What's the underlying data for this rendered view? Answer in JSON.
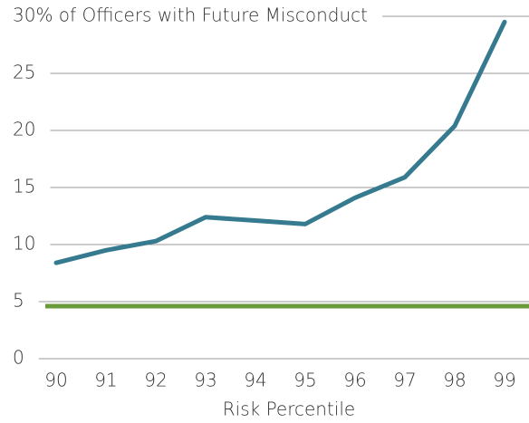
{
  "chart_data": {
    "type": "line",
    "categories": [
      "90",
      "91",
      "92",
      "93",
      "94",
      "95",
      "96",
      "97",
      "98",
      "99"
    ],
    "series": [
      {
        "color": "#357a8e",
        "values": [
          8.4,
          9.5,
          10.3,
          12.4,
          12.1,
          11.8,
          14.1,
          15.9,
          20.4,
          29.5
        ]
      }
    ],
    "reference_line": {
      "value": 4.6,
      "color": "#6a9a3a"
    },
    "xlabel": "Risk Percentile",
    "ylim": [
      0,
      30
    ],
    "yticks": [
      0,
      5,
      10,
      15,
      20,
      25,
      {
        "value": 30,
        "label": "30% of Officers with Future Misconduct"
      }
    ],
    "grid": true
  }
}
